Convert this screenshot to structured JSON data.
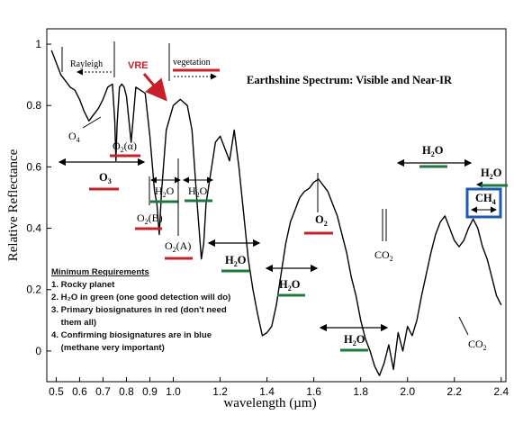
{
  "chart_data": {
    "type": "line",
    "title": "Earthshine Spectrum: Visible and Near-IR",
    "xlabel": "wavelength (µm)",
    "ylabel": "Relative Reflectance",
    "xlim": [
      0.46,
      2.42
    ],
    "ylim": [
      -0.1,
      1.05
    ],
    "x_ticks": [
      {
        "v": 0.5,
        "t": "0.5"
      },
      {
        "v": 0.6,
        "t": "0.6"
      },
      {
        "v": 0.7,
        "t": "0.7"
      },
      {
        "v": 0.8,
        "t": "0.8"
      },
      {
        "v": 0.9,
        "t": "0.9"
      },
      {
        "v": 1.0,
        "t": "1.0"
      },
      {
        "v": 1.2,
        "t": "1.2"
      },
      {
        "v": 1.4,
        "t": "1.4"
      },
      {
        "v": 1.6,
        "t": "1.6"
      },
      {
        "v": 1.8,
        "t": "1.8"
      },
      {
        "v": 2.0,
        "t": "2.0"
      },
      {
        "v": 2.2,
        "t": "2.2"
      },
      {
        "v": 2.4,
        "t": "2.4"
      }
    ],
    "y_ticks": [
      {
        "v": 0,
        "t": "0"
      },
      {
        "v": 0.2,
        "t": "0.2"
      },
      {
        "v": 0.4,
        "t": "0.4"
      },
      {
        "v": 0.6,
        "t": "0.6"
      },
      {
        "v": 0.8,
        "t": "0.8"
      },
      {
        "v": 1,
        "t": "1"
      }
    ],
    "grid": false,
    "series": [
      {
        "color": "#000000",
        "x": [
          0.48,
          0.5,
          0.52,
          0.54,
          0.56,
          0.58,
          0.6,
          0.62,
          0.64,
          0.66,
          0.68,
          0.7,
          0.72,
          0.74,
          0.75,
          0.755,
          0.76,
          0.77,
          0.78,
          0.79,
          0.8,
          0.82,
          0.84,
          0.86,
          0.88,
          0.9,
          0.92,
          0.93,
          0.94,
          0.95,
          0.97,
          1.0,
          1.03,
          1.06,
          1.08,
          1.1,
          1.11,
          1.12,
          1.13,
          1.14,
          1.16,
          1.18,
          1.2,
          1.22,
          1.24,
          1.26,
          1.28,
          1.3,
          1.32,
          1.34,
          1.36,
          1.38,
          1.4,
          1.42,
          1.44,
          1.46,
          1.48,
          1.5,
          1.52,
          1.54,
          1.56,
          1.58,
          1.6,
          1.62,
          1.64,
          1.66,
          1.68,
          1.7,
          1.72,
          1.74,
          1.76,
          1.78,
          1.8,
          1.82,
          1.84,
          1.86,
          1.88,
          1.9,
          1.92,
          1.94,
          1.96,
          1.98,
          2.0,
          2.02,
          2.04,
          2.06,
          2.08,
          2.1,
          2.12,
          2.14,
          2.16,
          2.18,
          2.2,
          2.22,
          2.24,
          2.26,
          2.28,
          2.3,
          2.32,
          2.34,
          2.36,
          2.38,
          2.4
        ],
        "y": [
          0.98,
          0.94,
          0.9,
          0.88,
          0.86,
          0.85,
          0.82,
          0.78,
          0.75,
          0.77,
          0.79,
          0.82,
          0.86,
          0.87,
          0.75,
          0.62,
          0.74,
          0.86,
          0.87,
          0.86,
          0.83,
          0.68,
          0.86,
          0.85,
          0.84,
          0.7,
          0.52,
          0.48,
          0.38,
          0.52,
          0.72,
          0.8,
          0.82,
          0.8,
          0.72,
          0.5,
          0.4,
          0.3,
          0.35,
          0.48,
          0.58,
          0.68,
          0.7,
          0.66,
          0.62,
          0.72,
          0.6,
          0.45,
          0.3,
          0.2,
          0.12,
          0.05,
          0.06,
          0.08,
          0.15,
          0.25,
          0.35,
          0.42,
          0.46,
          0.5,
          0.52,
          0.53,
          0.55,
          0.56,
          0.54,
          0.52,
          0.48,
          0.44,
          0.38,
          0.32,
          0.24,
          0.18,
          0.1,
          0.04,
          0.0,
          -0.05,
          -0.08,
          -0.04,
          0.02,
          -0.06,
          0.06,
          0.0,
          0.08,
          0.05,
          0.1,
          0.18,
          0.25,
          0.32,
          0.38,
          0.42,
          0.44,
          0.4,
          0.36,
          0.34,
          0.36,
          0.4,
          0.43,
          0.4,
          0.34,
          0.3,
          0.24,
          0.18,
          0.15
        ]
      }
    ],
    "annotations": {
      "rayleigh": "Rayleigh",
      "vegetation": "vegetation",
      "vre": "VRE",
      "o4": "O",
      "o4_sub": "4",
      "o2a_alpha": "O",
      "o2a_alpha_sub": "2",
      "o2a_alpha_suffix": "(α)",
      "o2b": "O",
      "o2b_sub": "2",
      "o2b_suffix": "(B)",
      "o2a": "O",
      "o2a_sub": "2",
      "o2a_suffix": "(A)",
      "o3": "O",
      "o3_sub": "3",
      "h2o_label": "H",
      "h2o_sub": "2",
      "h2o_tail": "O",
      "o2_ir": "O",
      "o2_ir_sub": "2",
      "co2": "CO",
      "co2_sub": "2",
      "ch4": "CH",
      "ch4_sub": "4"
    },
    "requirements": {
      "heading": "Minimum Requirements",
      "items": [
        "1. Rocky planet",
        "2. H₂O in green (one good detection will do)",
        "3. Primary biosignatures in red (don't need",
        "    them all)",
        "4. Confirming biosignatures are in blue",
        "    (methane very important)"
      ]
    },
    "colors": {
      "red": "#c8202a",
      "green": "#1e7a3c",
      "blue": "#1d5bb0",
      "black": "#000000"
    }
  }
}
